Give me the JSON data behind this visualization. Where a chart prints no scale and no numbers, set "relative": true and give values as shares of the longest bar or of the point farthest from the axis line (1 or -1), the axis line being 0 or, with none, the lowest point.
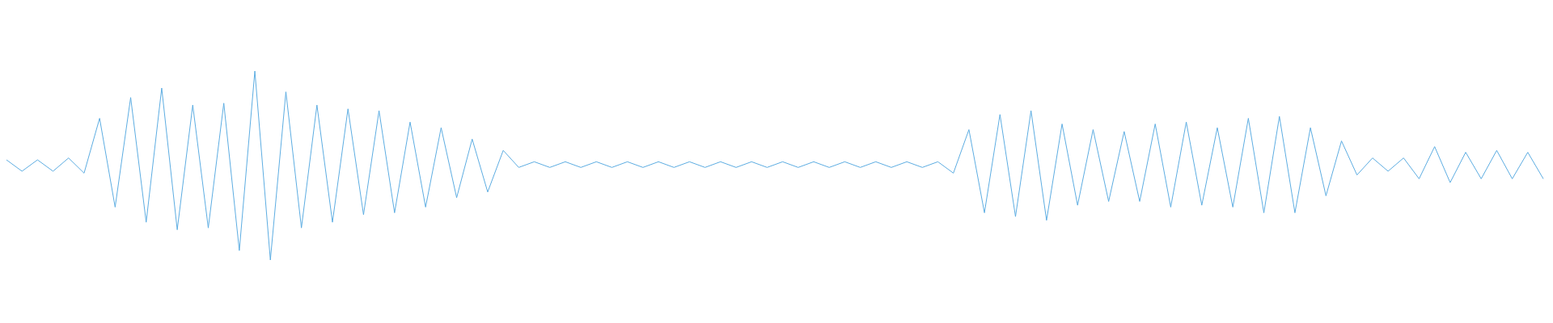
{
  "chart_data": {
    "type": "line",
    "relative": true,
    "categories": [
      null,
      null,
      null,
      null,
      null,
      null,
      null,
      null,
      null,
      null,
      null,
      null,
      null,
      null,
      null,
      null,
      null,
      null,
      null,
      null,
      null,
      null,
      null,
      null,
      null,
      null,
      null,
      null,
      null,
      null,
      null,
      null,
      null,
      null,
      null,
      null,
      null,
      null,
      null,
      null,
      null,
      null,
      null,
      null,
      null,
      null,
      null,
      null,
      null,
      null,
      null,
      null,
      null,
      null,
      null,
      null,
      null,
      null,
      null,
      null,
      null,
      null,
      null,
      null,
      null,
      null,
      null,
      null,
      null,
      null,
      null,
      null,
      null,
      null,
      null,
      null,
      null,
      null,
      null,
      null,
      null,
      null,
      null,
      null,
      null,
      null,
      null,
      null,
      null,
      null,
      null,
      null,
      null,
      null,
      null,
      null,
      null,
      null,
      null,
      null
    ],
    "series": [
      {
        "color": "#5dade2",
        "values": [
          0.53,
          0.47,
          0.53,
          0.47,
          0.54,
          0.46,
          0.75,
          0.28,
          0.86,
          0.2,
          0.91,
          0.16,
          0.82,
          0.17,
          0.83,
          0.05,
          1,
          0,
          0.89,
          0.17,
          0.82,
          0.2,
          0.8,
          0.24,
          0.79,
          0.25,
          0.73,
          0.28,
          0.7,
          0.33,
          0.64,
          0.36,
          0.58,
          0.49,
          0.52,
          0.49,
          0.52,
          0.49,
          0.52,
          0.49,
          0.52,
          0.49,
          0.52,
          0.49,
          0.52,
          0.49,
          0.52,
          0.49,
          0.52,
          0.49,
          0.52,
          0.49,
          0.52,
          0.49,
          0.52,
          0.49,
          0.52,
          0.49,
          0.52,
          0.49,
          0.52,
          0.46,
          0.69,
          0.25,
          0.77,
          0.23,
          0.79,
          0.21,
          0.72,
          0.29,
          0.69,
          0.31,
          0.68,
          0.31,
          0.72,
          0.28,
          0.73,
          0.29,
          0.7,
          0.28,
          0.75,
          0.25,
          0.76,
          0.25,
          0.7,
          0.34,
          0.63,
          0.45,
          0.54,
          0.47,
          0.54,
          0.43,
          0.6,
          0.41,
          0.57,
          0.43,
          0.58,
          0.43,
          0.57,
          0.43
        ]
      }
    ],
    "marker": "none",
    "line_style": "solid"
  }
}
